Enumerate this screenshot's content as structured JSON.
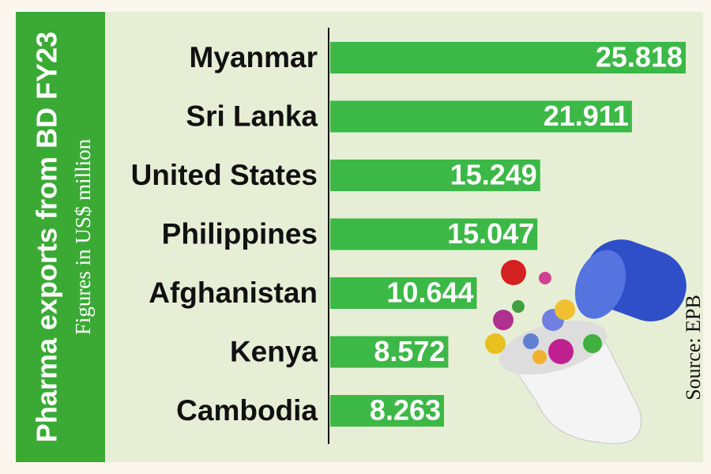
{
  "chart_data": {
    "type": "bar",
    "orientation": "horizontal",
    "title": "Pharma exports from BD FY23",
    "subtitle": "Figures in US$ million",
    "source": "Source: EPB",
    "categories": [
      "Myanmar",
      "Sri Lanka",
      "United States",
      "Philippines",
      "Afghanistan",
      "Kenya",
      "Cambodia"
    ],
    "values": [
      25.818,
      21.911,
      15.249,
      15.047,
      10.644,
      8.572,
      8.263
    ],
    "color": "#3cb846"
  }
}
